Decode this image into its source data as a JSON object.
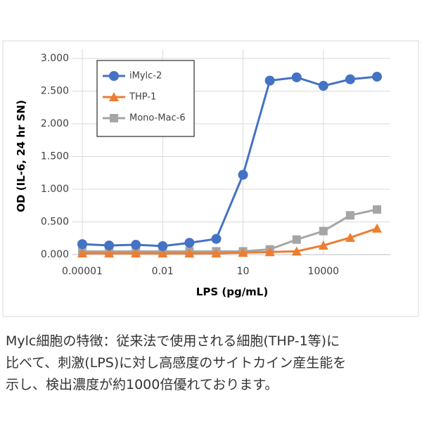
{
  "chart_data": {
    "type": "line",
    "x_label": "LPS (pg/mL)",
    "y_label": "OD (IL-6, 24 hr SN)",
    "x": [
      1e-05,
      0.0001,
      0.001,
      0.01,
      0.1,
      1,
      10,
      100,
      1000,
      10000,
      100000,
      1000000
    ],
    "series": [
      {
        "name": "iMylc-2",
        "color": "#4472c4",
        "marker": "circle",
        "values": [
          0.16,
          0.14,
          0.15,
          0.13,
          0.18,
          0.24,
          1.22,
          2.66,
          2.71,
          2.58,
          2.68,
          2.72
        ]
      },
      {
        "name": "THP-1",
        "color": "#ed7d31",
        "marker": "triangle",
        "values": [
          0.02,
          0.02,
          0.02,
          0.02,
          0.02,
          0.02,
          0.03,
          0.04,
          0.05,
          0.14,
          0.26,
          0.4
        ]
      },
      {
        "name": "Mono-Mac-6",
        "color": "#a5a5a5",
        "marker": "square",
        "values": [
          0.05,
          0.05,
          0.05,
          0.05,
          0.05,
          0.05,
          0.05,
          0.08,
          0.23,
          0.36,
          0.6,
          0.69
        ]
      }
    ],
    "xlim": [
      1e-05,
      1000000
    ],
    "xscale": "log",
    "xticks": [
      1e-05,
      0.01,
      10,
      10000
    ],
    "ylim": [
      0,
      3
    ],
    "yticks": [
      {
        "value": 0,
        "label": "0.000"
      },
      {
        "value": 0.5,
        "label": "0.500"
      },
      {
        "value": 1,
        "label": "1.000"
      },
      {
        "value": 1.5,
        "label": "1.500"
      },
      {
        "value": 2,
        "label": "2.000"
      },
      {
        "value": 2.5,
        "label": "2.500"
      },
      {
        "value": 3,
        "label": "3.000"
      }
    ],
    "grid": true,
    "legend": "top-left"
  },
  "caption": [
    "Mylc細胞の特徴：従来法で使用される細胞(THP-1等)に",
    "比べて、刺激(LPS)に対し高感度のサイトカイン産生能を",
    "示し、検出濃度が約1000倍優れております。"
  ]
}
